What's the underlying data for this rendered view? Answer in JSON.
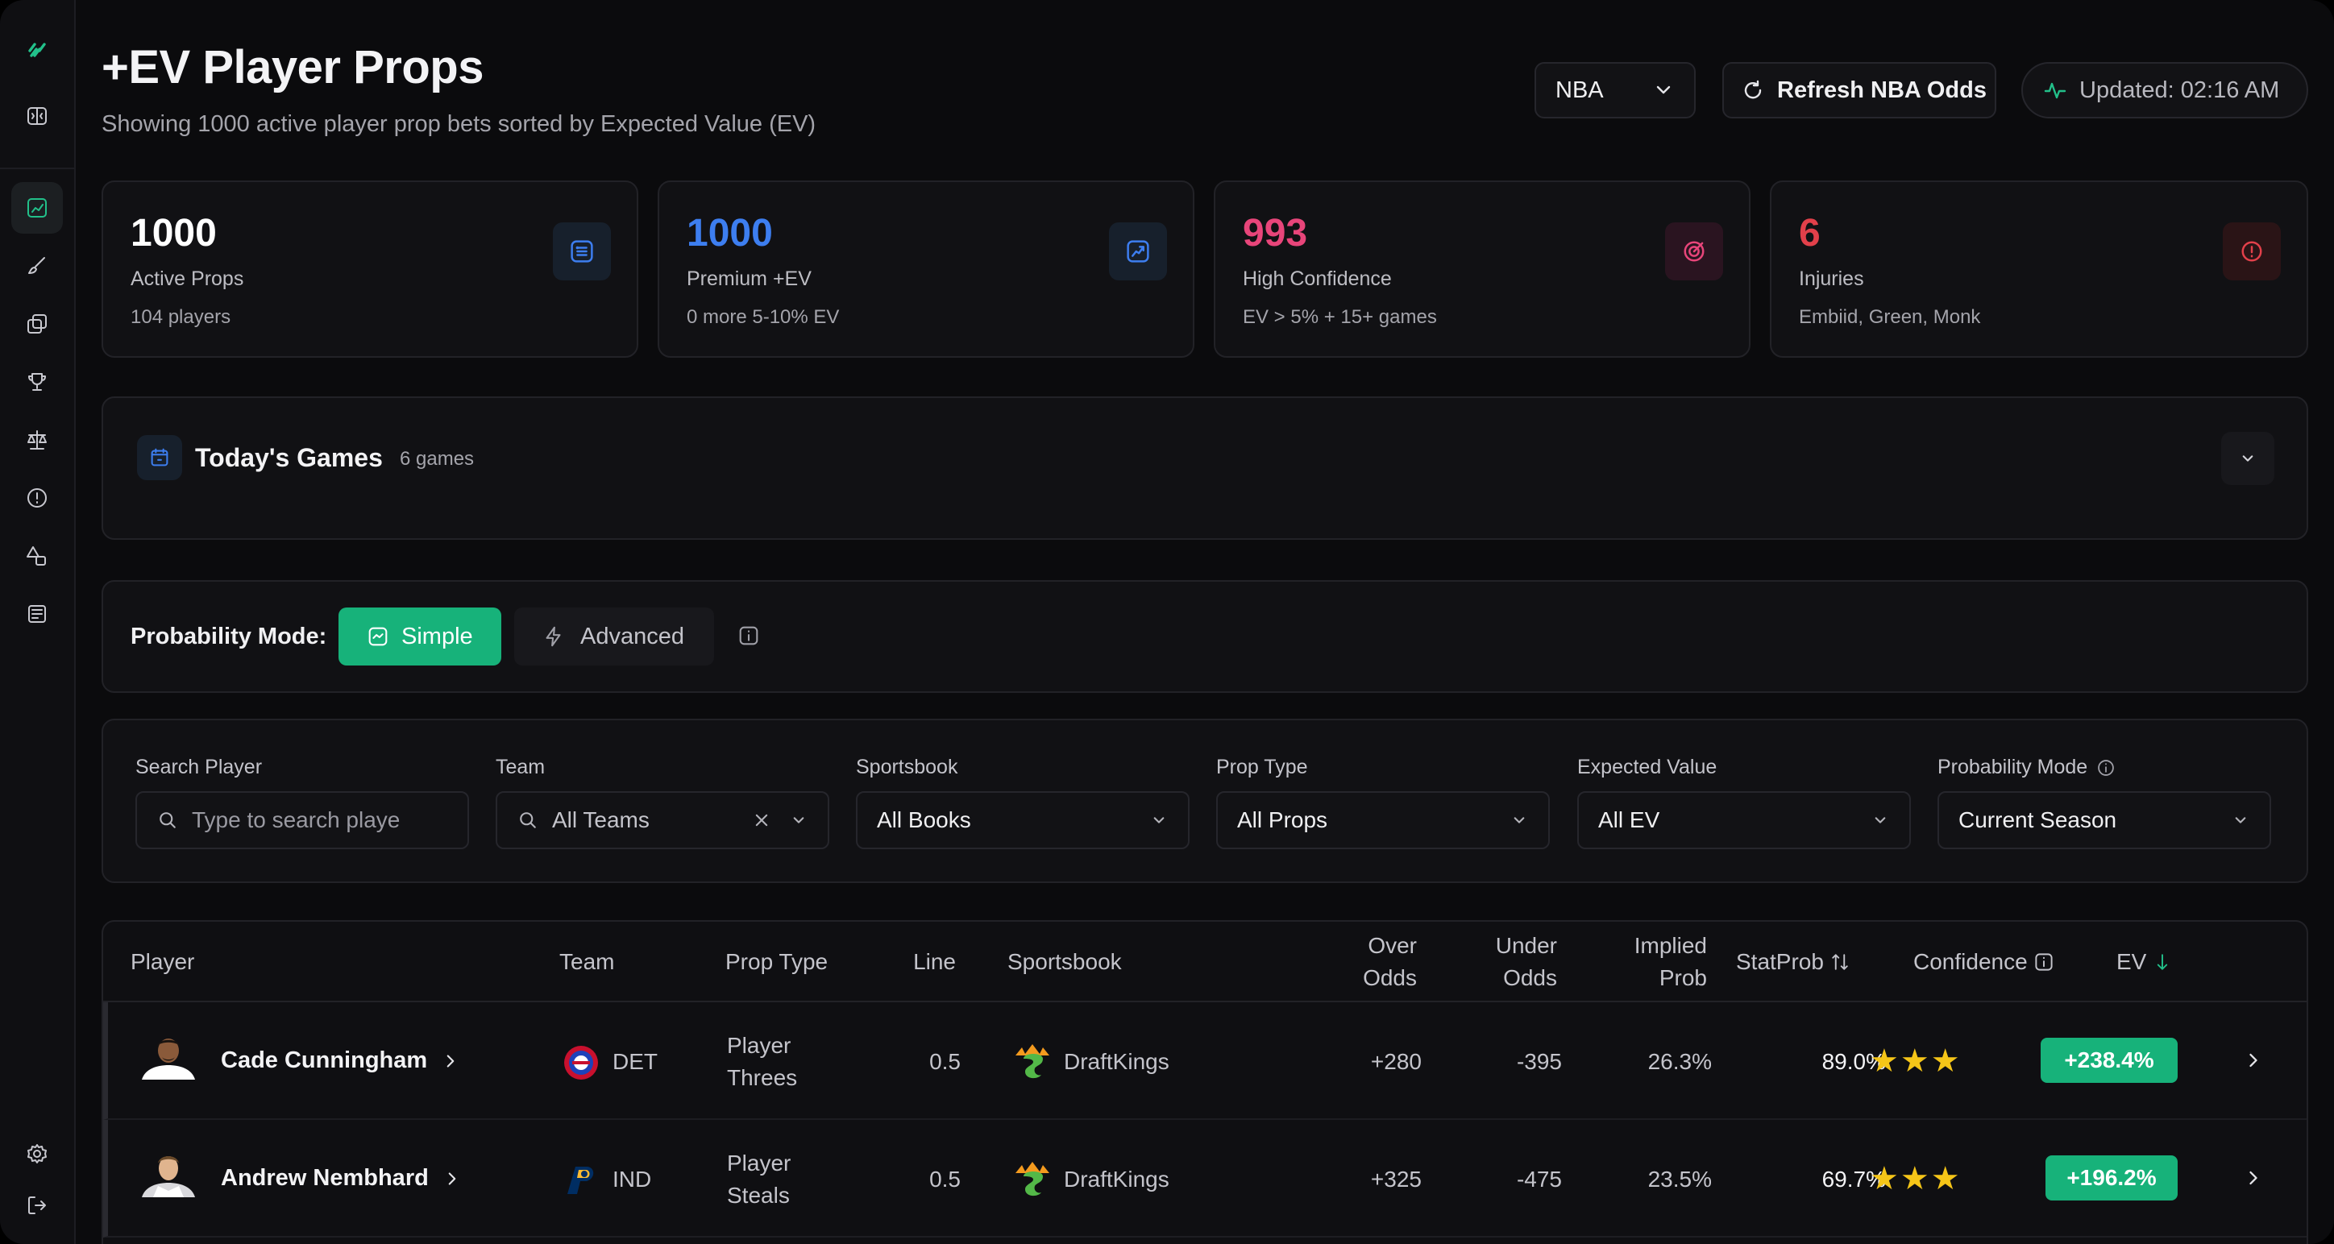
{
  "header": {
    "title": "+EV Player Props",
    "subtitle": "Showing 1000 active player prop bets sorted by Expected Value (EV)",
    "league": "NBA",
    "refresh_label": "Refresh NBA Odds",
    "updated_label": "Updated: 02:16 AM"
  },
  "colors": {
    "accent": "#17b27a",
    "blue": "#3d7ef0",
    "pink": "#e8457a",
    "red": "#e2404a"
  },
  "stats": [
    {
      "value": "1000",
      "label": "Active Props",
      "sub": "104 players",
      "color": "#ffffff",
      "icon": "list-icon"
    },
    {
      "value": "1000",
      "label": "Premium +EV",
      "sub": "0 more 5-10% EV",
      "color": "#3d7ef0",
      "icon": "chart-up-icon"
    },
    {
      "value": "993",
      "label": "High Confidence",
      "sub": "EV > 5% + 15+ games",
      "color": "#e8457a",
      "icon": "target-icon"
    },
    {
      "value": "6",
      "label": "Injuries",
      "sub": "Embiid, Green, Monk",
      "color": "#e2404a",
      "icon": "alert-icon"
    }
  ],
  "games": {
    "title": "Today's Games",
    "count": "6 games"
  },
  "probability_mode": {
    "label": "Probability Mode:",
    "simple": "Simple",
    "advanced": "Advanced"
  },
  "filters": {
    "search_label": "Search Player",
    "search_placeholder": "Type to search playe",
    "team_label": "Team",
    "team_value": "All Teams",
    "sportsbook_label": "Sportsbook",
    "sportsbook_value": "All Books",
    "prop_label": "Prop Type",
    "prop_value": "All Props",
    "ev_label": "Expected Value",
    "ev_value": "All EV",
    "mode_label": "Probability Mode",
    "mode_value": "Current Season"
  },
  "table": {
    "headers": {
      "player": "Player",
      "team": "Team",
      "prop": "Prop Type",
      "line": "Line",
      "sportsbook": "Sportsbook",
      "over_1": "Over",
      "over_2": "Odds",
      "under_1": "Under",
      "under_2": "Odds",
      "implied_1": "Implied",
      "implied_2": "Prob",
      "statprob": "StatProb",
      "confidence": "Confidence",
      "ev": "EV"
    },
    "rows": [
      {
        "player": "Cade Cunningham",
        "team": "DET",
        "prop_1": "Player",
        "prop_2": "Threes",
        "line": "0.5",
        "book": "DraftKings",
        "over": "+280",
        "under": "-395",
        "implied": "26.3%",
        "statprob": "89.0%",
        "stars": 3,
        "ev": "+238.4%"
      },
      {
        "player": "Andrew Nembhard",
        "team": "IND",
        "prop_1": "Player",
        "prop_2": "Steals",
        "line": "0.5",
        "book": "DraftKings",
        "over": "+325",
        "under": "-475",
        "implied": "23.5%",
        "statprob": "69.7%",
        "stars": 3,
        "ev": "+196.2%"
      }
    ]
  }
}
